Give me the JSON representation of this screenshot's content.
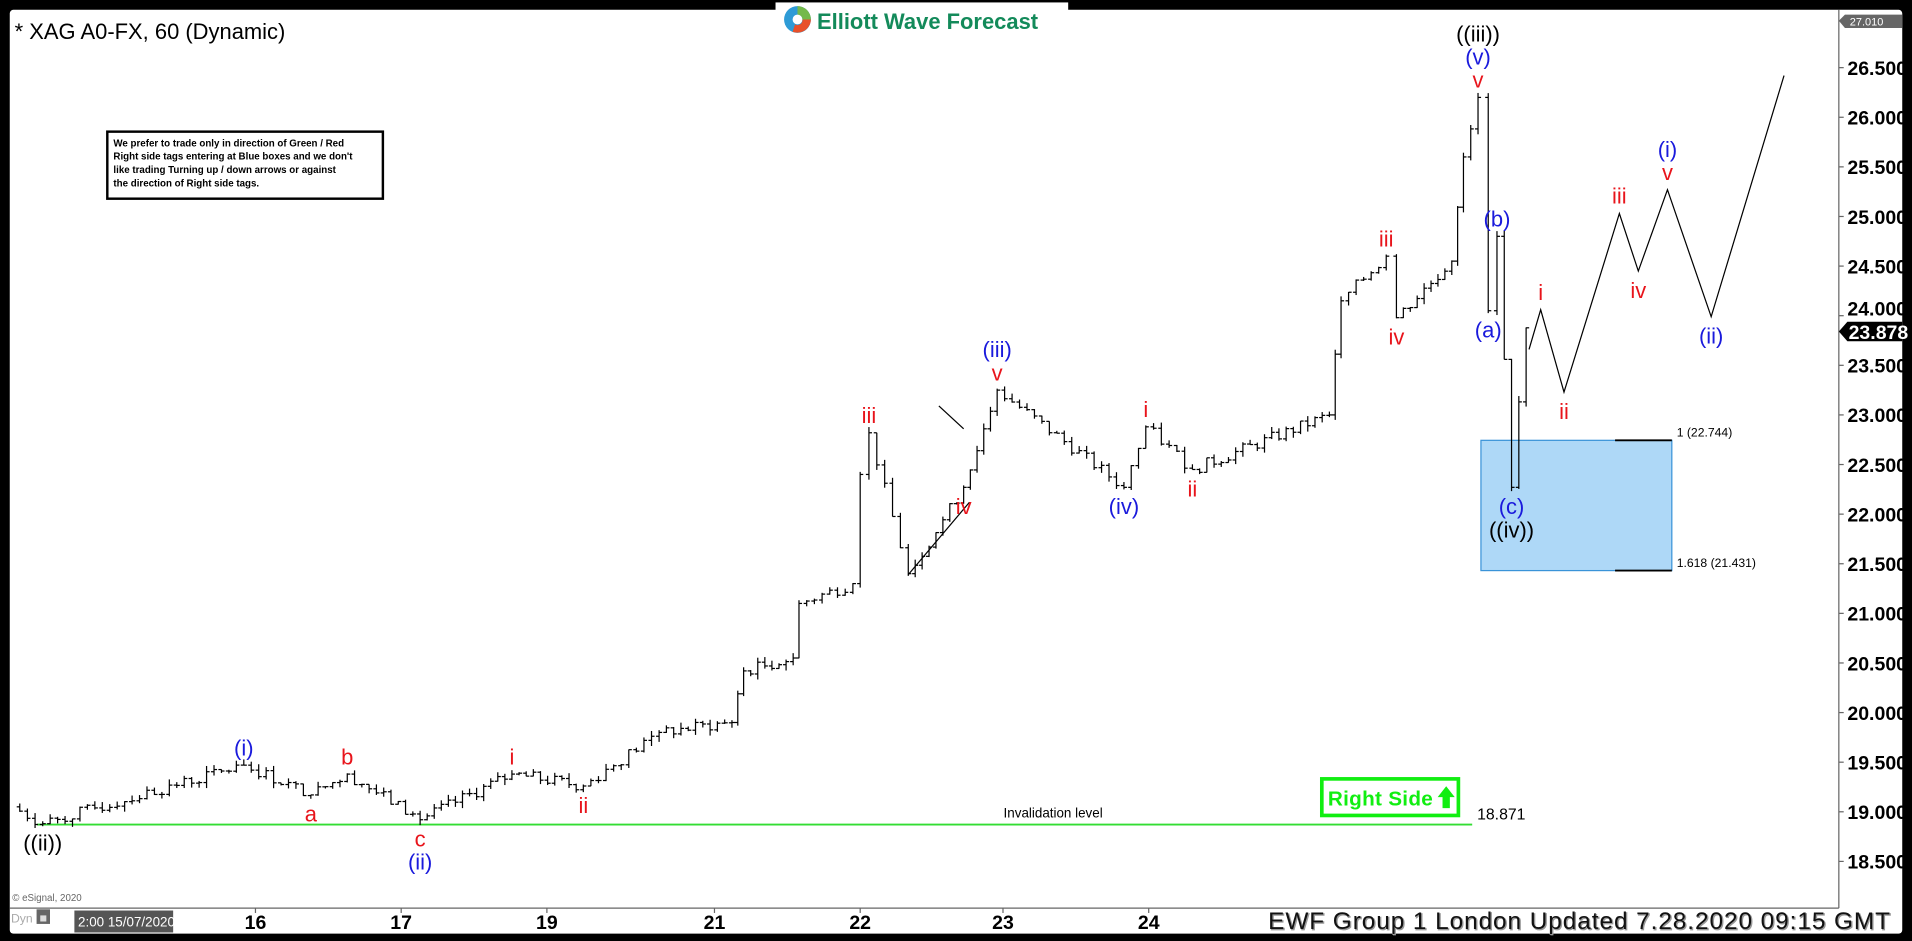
{
  "header": {
    "title": "* XAG A0-FX, 60 (Dynamic)",
    "logo_text": "Elliott Wave Forecast"
  },
  "note": {
    "lines": [
      "We prefer to trade only in direction of Green / Red",
      "Right side tags entering at Blue boxes and we don't",
      "like trading Turning up / down arrows or against",
      "the direction of Right side tags."
    ]
  },
  "footer": {
    "updated": "EWF Group 1 London Updated 7.28.2020 09:15 GMT",
    "copyright": "© eSignal, 2020",
    "dyn": "Dyn",
    "cursor_time": "2:00 15/07/2020"
  },
  "colors": {
    "wave_red": "#e8141b",
    "wave_blue": "#1a1adc",
    "wave_black": "#000000",
    "invalidation_green": "#33dd33",
    "right_side_green": "#11ee11",
    "blue_box": "#aed8f7"
  },
  "chart_data": {
    "type": "ohlc",
    "symbol": "XAG A0-FX",
    "interval": "60",
    "ylim": [
      18.1,
      27.0
    ],
    "yticks": [
      "18.500",
      "19.000",
      "19.500",
      "20.000",
      "20.500",
      "21.000",
      "21.500",
      "22.000",
      "22.500",
      "23.000",
      "23.500",
      "24.000",
      "24.500",
      "25.000",
      "25.500",
      "26.000",
      "26.500"
    ],
    "ytick_values": [
      18.5,
      19,
      19.5,
      20,
      20.5,
      21,
      21.5,
      22,
      22.5,
      23,
      23.5,
      24,
      24.5,
      25,
      25.5,
      26,
      26.5
    ],
    "xticks": [
      {
        "label": "16",
        "t": 1
      },
      {
        "label": "17",
        "t": 2
      },
      {
        "label": "19",
        "t": 3
      },
      {
        "label": "21",
        "t": 4.15
      },
      {
        "label": "22",
        "t": 5.15
      },
      {
        "label": "23",
        "t": 6.13
      },
      {
        "label": "24",
        "t": 7.13
      }
    ],
    "top_price_tag": "27.010",
    "last_price": "23.878",
    "last_price_value": 23.878,
    "pivots": [
      {
        "t": -0.67,
        "p": 19.05,
        "pos": "below",
        "labels": []
      },
      {
        "t": -0.46,
        "p": 18.88,
        "pos": "below",
        "labels": [
          {
            "text": "((ii))",
            "color": "black"
          }
        ]
      },
      {
        "t": 0.92,
        "p": 19.47,
        "pos": "above",
        "labels": [
          {
            "text": "(i)",
            "color": "blue"
          }
        ]
      },
      {
        "t": 1.38,
        "p": 19.17,
        "pos": "below",
        "labels": [
          {
            "text": "a",
            "color": "red"
          }
        ]
      },
      {
        "t": 1.63,
        "p": 19.38,
        "pos": "above",
        "labels": [
          {
            "text": "b",
            "color": "red"
          }
        ]
      },
      {
        "t": 2.13,
        "p": 18.92,
        "pos": "below",
        "labels": [
          {
            "text": "c",
            "color": "red"
          },
          {
            "text": "(ii)",
            "color": "blue"
          }
        ]
      },
      {
        "t": 2.76,
        "p": 19.38,
        "pos": "above",
        "labels": [
          {
            "text": "i",
            "color": "red"
          }
        ]
      },
      {
        "t": 3.25,
        "p": 19.26,
        "pos": "below",
        "labels": [
          {
            "text": "ii",
            "color": "red"
          }
        ]
      },
      {
        "t": 3.77,
        "p": 19.8,
        "pos": "none",
        "labels": []
      },
      {
        "t": 4.27,
        "p": 19.9,
        "pos": "none",
        "labels": []
      },
      {
        "t": 4.35,
        "p": 20.42,
        "pos": "none",
        "labels": []
      },
      {
        "t": 4.69,
        "p": 20.55,
        "pos": "none",
        "labels": []
      },
      {
        "t": 4.73,
        "p": 21.1,
        "pos": "none",
        "labels": []
      },
      {
        "t": 5.1,
        "p": 21.3,
        "pos": "none",
        "labels": []
      },
      {
        "t": 5.15,
        "p": 22.4,
        "pos": "none",
        "labels": []
      },
      {
        "t": 5.21,
        "p": 22.82,
        "pos": "above",
        "labels": [
          {
            "text": "iii",
            "color": "red"
          }
        ]
      },
      {
        "t": 5.48,
        "p": 21.4,
        "pos": "none",
        "labels": []
      },
      {
        "t": 5.86,
        "p": 22.27,
        "pos": "below",
        "labels": [
          {
            "text": "iv",
            "color": "red"
          }
        ]
      },
      {
        "t": 6.09,
        "p": 23.25,
        "pos": "above",
        "labels": [
          {
            "text": "v",
            "color": "red"
          },
          {
            "text": "(iii)",
            "color": "blue"
          }
        ]
      },
      {
        "t": 6.96,
        "p": 22.27,
        "pos": "below",
        "labels": [
          {
            "text": "(iv)",
            "color": "blue"
          }
        ]
      },
      {
        "t": 7.11,
        "p": 22.88,
        "pos": "above",
        "labels": [
          {
            "text": "i",
            "color": "red"
          }
        ]
      },
      {
        "t": 7.43,
        "p": 22.45,
        "pos": "below",
        "labels": [
          {
            "text": "ii",
            "color": "red"
          }
        ]
      },
      {
        "t": 8.37,
        "p": 23.0,
        "pos": "none",
        "labels": []
      },
      {
        "t": 8.45,
        "p": 24.15,
        "pos": "none",
        "labels": []
      },
      {
        "t": 8.76,
        "p": 24.6,
        "pos": "above",
        "labels": [
          {
            "text": "iii",
            "color": "red"
          }
        ]
      },
      {
        "t": 8.83,
        "p": 23.98,
        "pos": "below",
        "labels": [
          {
            "text": "iv",
            "color": "red"
          }
        ]
      },
      {
        "t": 9.21,
        "p": 24.55,
        "pos": "none",
        "labels": []
      },
      {
        "t": 9.29,
        "p": 25.6,
        "pos": "none",
        "labels": []
      },
      {
        "t": 9.39,
        "p": 26.2,
        "pos": "above",
        "labels": [
          {
            "text": "v",
            "color": "red"
          },
          {
            "text": "(v)",
            "color": "blue"
          },
          {
            "text": "((iii))",
            "color": "black"
          }
        ]
      },
      {
        "t": 9.46,
        "p": 24.05,
        "pos": "below",
        "labels": [
          {
            "text": "(a)",
            "color": "blue"
          }
        ]
      },
      {
        "t": 9.52,
        "p": 24.8,
        "pos": "above",
        "labels": [
          {
            "text": "(b)",
            "color": "blue"
          }
        ]
      },
      {
        "t": 9.62,
        "p": 22.27,
        "pos": "below",
        "labels": [
          {
            "text": "(c)",
            "color": "blue"
          },
          {
            "text": "((iv))",
            "color": "black"
          }
        ]
      },
      {
        "t": 9.72,
        "p": 23.878,
        "pos": "none",
        "labels": []
      }
    ],
    "projection": [
      {
        "t": 9.74,
        "p": 23.66,
        "pos": "none",
        "labels": []
      },
      {
        "t": 9.82,
        "p": 24.06,
        "pos": "above",
        "labels": [
          {
            "text": "i",
            "color": "red"
          }
        ]
      },
      {
        "t": 9.98,
        "p": 23.23,
        "pos": "below",
        "labels": [
          {
            "text": "ii",
            "color": "red"
          }
        ]
      },
      {
        "t": 10.36,
        "p": 25.03,
        "pos": "above",
        "labels": [
          {
            "text": "iii",
            "color": "red"
          }
        ]
      },
      {
        "t": 10.49,
        "p": 24.45,
        "pos": "below",
        "labels": [
          {
            "text": "iv",
            "color": "red"
          }
        ]
      },
      {
        "t": 10.69,
        "p": 25.27,
        "pos": "above",
        "labels": [
          {
            "text": "v",
            "color": "red"
          },
          {
            "text": "(i)",
            "color": "blue"
          }
        ]
      },
      {
        "t": 10.99,
        "p": 23.99,
        "pos": "below",
        "labels": [
          {
            "text": "(ii)",
            "color": "blue"
          }
        ]
      },
      {
        "t": 11.49,
        "p": 26.42,
        "pos": "none",
        "labels": []
      }
    ],
    "triangle_lines": [
      {
        "from": {
          "t": 5.48,
          "p": 21.39
        },
        "to": {
          "t": 5.9,
          "p": 22.12
        }
      },
      {
        "from": {
          "t": 5.69,
          "p": 23.09
        },
        "to": {
          "t": 5.86,
          "p": 22.86
        }
      }
    ],
    "blue_box": {
      "t_start": 9.41,
      "t_end": 10.72,
      "top": 22.744,
      "bottom": 21.431,
      "top_label": "1 (22.744)",
      "bottom_label": "1.618 (21.431)"
    },
    "invalidation": {
      "price": 18.871,
      "price_label": "18.871",
      "label": "Invalidation level",
      "t_start": -0.5,
      "t_end": 9.35
    },
    "right_side_tag": {
      "text": "Right Side",
      "arrow": "up"
    }
  }
}
